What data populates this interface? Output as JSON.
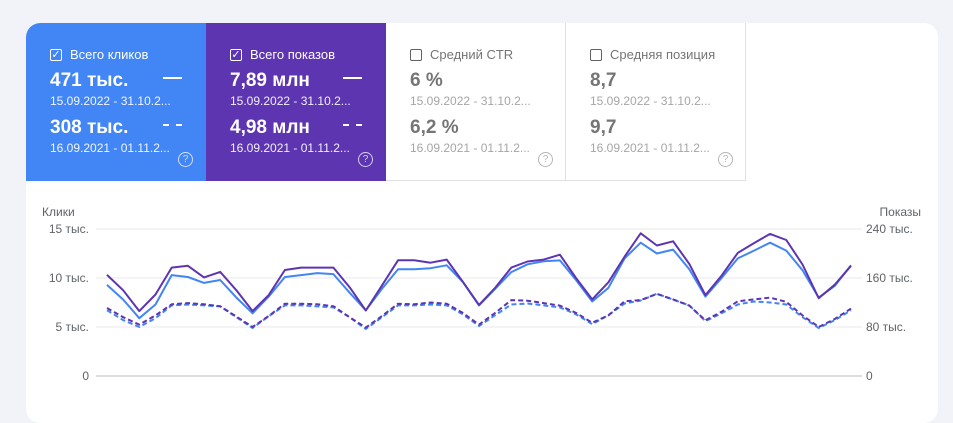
{
  "cards": [
    {
      "label": "Всего кликов",
      "checked": true,
      "value1": "471 тыс.",
      "date1": "15.09.2022 - 31.10.2...",
      "value2": "308 тыс.",
      "date2": "16.09.2021 - 01.11.2...",
      "help": "?"
    },
    {
      "label": "Всего показов",
      "checked": true,
      "value1": "7,89 млн",
      "date1": "15.09.2022 - 31.10.2...",
      "value2": "4,98 млн",
      "date2": "16.09.2021 - 01.11.2...",
      "help": "?"
    },
    {
      "label": "Средний CTR",
      "checked": false,
      "value1": "6 %",
      "date1": "15.09.2022 - 31.10.2...",
      "value2": "6,2 %",
      "date2": "16.09.2021 - 01.11.2...",
      "help": "?"
    },
    {
      "label": "Средняя позиция",
      "checked": false,
      "value1": "8,7",
      "date1": "15.09.2022 - 31.10.2...",
      "value2": "9,7",
      "date2": "16.09.2021 - 01.11.2...",
      "help": "?"
    }
  ],
  "colors": {
    "clicks": "#4285f4",
    "impressions": "#5e35b1",
    "grid": "#e8eaed"
  },
  "chart_data": {
    "type": "line",
    "ylabel_left": "Клики",
    "ylabel_right": "Показы",
    "left_ticks": [
      "0",
      "5 тыс.",
      "10 тыс.",
      "15 тыс."
    ],
    "right_ticks": [
      "0",
      "80 тыс.",
      "160 тыс.",
      "240 тыс."
    ],
    "ylim_left": [
      0,
      15000
    ],
    "ylim_right": [
      0,
      240000
    ],
    "grid": true,
    "series": [
      {
        "axis": "left",
        "style": "solid",
        "values": [
          9300,
          7800,
          5900,
          7300,
          10300,
          10100,
          9500,
          9800,
          8000,
          6400,
          8100,
          10100,
          10300,
          10500,
          10400,
          8500,
          6700,
          8900,
          10900,
          10900,
          11000,
          11300,
          9600,
          7200,
          8900,
          10600,
          11400,
          11700,
          11800,
          9800,
          7600,
          9000,
          12000,
          13600,
          12500,
          12900,
          10900,
          8100,
          10000,
          12000,
          12800,
          13600,
          12800,
          10800,
          8000,
          9200,
          11300
        ]
      },
      {
        "axis": "right",
        "style": "solid",
        "values": [
          165000,
          140000,
          106000,
          133000,
          177000,
          180000,
          161000,
          170000,
          140000,
          106000,
          132000,
          173000,
          177000,
          177000,
          177000,
          145000,
          107000,
          148000,
          189000,
          189000,
          185000,
          190000,
          154000,
          116000,
          144000,
          177000,
          187000,
          190000,
          198000,
          160000,
          125000,
          153000,
          195000,
          233000,
          213000,
          220000,
          183000,
          132000,
          164000,
          201000,
          217000,
          232000,
          222000,
          182000,
          127000,
          149000,
          180000
        ]
      },
      {
        "axis": "left",
        "style": "dashed",
        "values": [
          6700,
          5700,
          5000,
          5900,
          7200,
          7300,
          7200,
          7100,
          6000,
          4900,
          6100,
          7200,
          7200,
          7100,
          7000,
          6000,
          4800,
          6000,
          7200,
          7200,
          7300,
          7200,
          6300,
          5100,
          6200,
          7300,
          7400,
          7200,
          7000,
          6300,
          5300,
          6200,
          7400,
          7700,
          8400,
          7800,
          7200,
          5600,
          6400,
          7300,
          7600,
          7500,
          7300,
          6000,
          4900,
          5700,
          6700
        ]
      },
      {
        "axis": "right",
        "style": "dashed",
        "values": [
          111000,
          96000,
          84000,
          99000,
          117000,
          119000,
          117000,
          114000,
          97000,
          80000,
          98000,
          118000,
          118000,
          117000,
          114000,
          96000,
          79000,
          98000,
          118000,
          117000,
          120000,
          118000,
          103000,
          84000,
          103000,
          124000,
          123000,
          119000,
          115000,
          103000,
          87000,
          99000,
          122000,
          124000,
          134000,
          125000,
          115000,
          91000,
          105000,
          122000,
          125000,
          128000,
          121000,
          99000,
          80000,
          93000,
          110000
        ]
      }
    ]
  }
}
